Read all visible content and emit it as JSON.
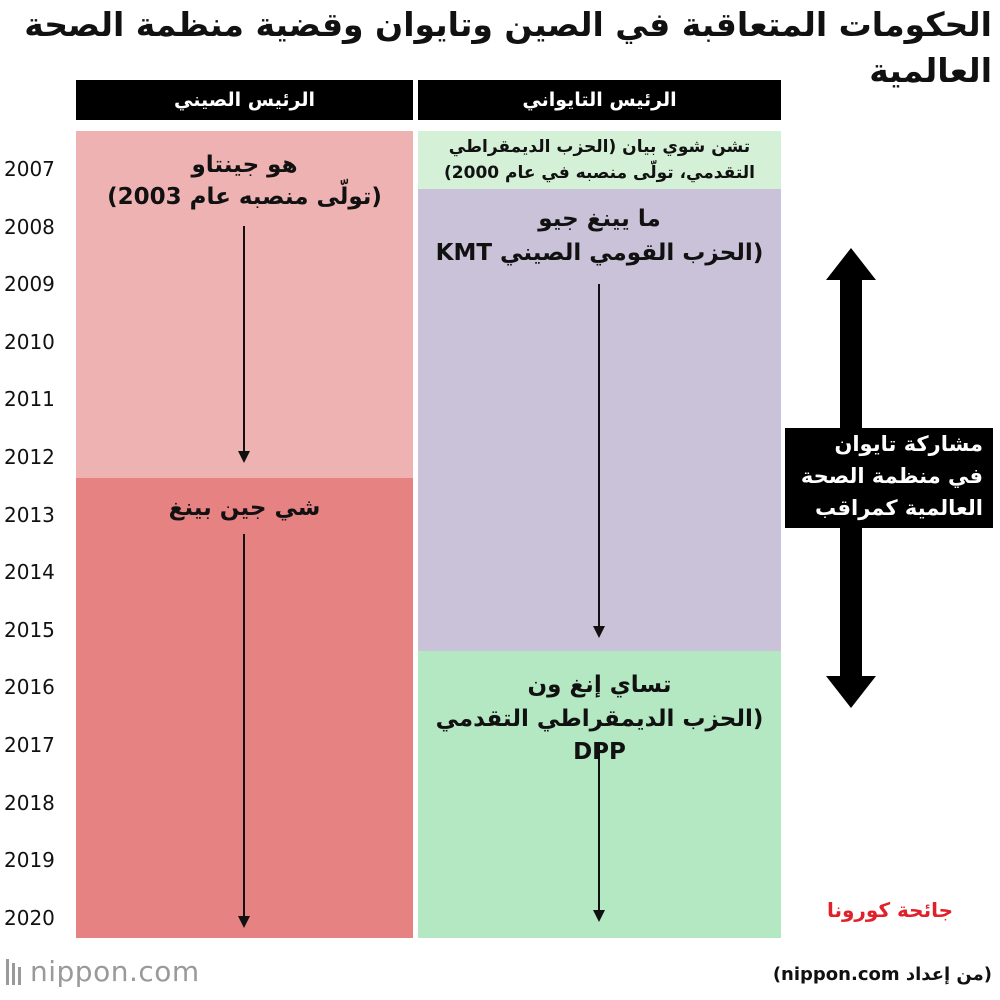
{
  "title": "الحكومات المتعاقبة في الصين وتايوان وقضية منظمة الصحة العالمية",
  "headers": {
    "china": "الرئيس الصيني",
    "taiwan": "الرئيس التايواني"
  },
  "years": [
    "2007",
    "2008",
    "2009",
    "2010",
    "2011",
    "2012",
    "2013",
    "2014",
    "2015",
    "2016",
    "2017",
    "2018",
    "2019",
    "2020"
  ],
  "china_blocks": [
    {
      "name": "هو جينتاو",
      "note": "(تولّى منصبه عام 2003)",
      "color": "#efb2b2"
    },
    {
      "name": "شي جين بينغ",
      "note": "",
      "color": "#e78282"
    }
  ],
  "taiwan_blocks": [
    {
      "line1": "تشن شوي بيان (الحزب الديمقراطي",
      "line2": "التقدمي، تولّى منصبه في عام 2000)",
      "color": "#d4f0d6"
    },
    {
      "name": "ما يينغ جيو",
      "note": "(الحزب القومي الصيني KMT",
      "color": "#c9c2d8"
    },
    {
      "name": "تساي إنغ ون",
      "note": "(الحزب الديمقراطي التقدمي DPP",
      "color": "#b3e8c2"
    }
  ],
  "who_observer": {
    "lines": [
      "مشاركة تايوان",
      "في منظمة الصحة",
      "العالمية كمراقب"
    ]
  },
  "corona_label": "جائحة كورونا",
  "source": "(من إعداد nippon.com)",
  "logo": {
    "brand": "nippon",
    "dot": ".",
    "tld": "com"
  }
}
